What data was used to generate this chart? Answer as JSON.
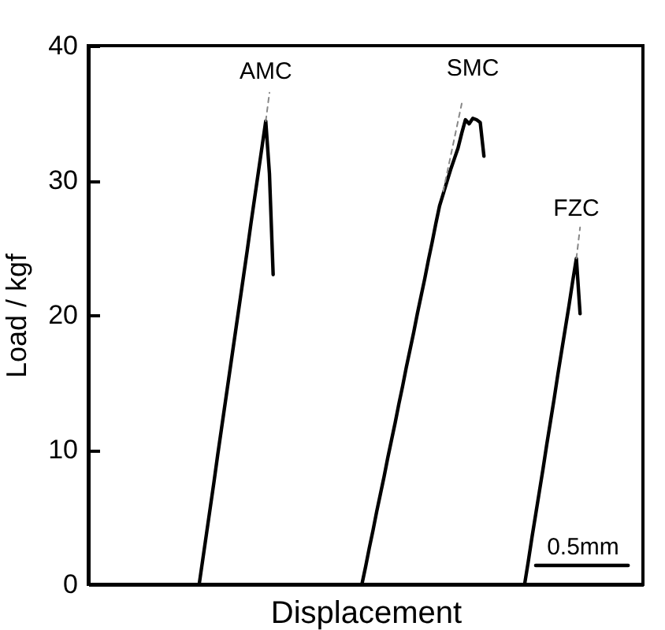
{
  "chart_data": {
    "type": "line",
    "xlabel": "Displacement",
    "ylabel": "Load / kgf",
    "categories": [
      null,
      null,
      null,
      null,
      null,
      null,
      null,
      null,
      null,
      null,
      null,
      null,
      null,
      null,
      null,
      null,
      null,
      null,
      null,
      null,
      null,
      null,
      null,
      null,
      null,
      null,
      null,
      null,
      null,
      null,
      null,
      null,
      null,
      null,
      null,
      null,
      null,
      null,
      null,
      null,
      null,
      null,
      null,
      null,
      null,
      null,
      null,
      null,
      null,
      null,
      null,
      null,
      null,
      null,
      null,
      null,
      null,
      null,
      null,
      null,
      null,
      null,
      null,
      null,
      null,
      null,
      null,
      null,
      null,
      null,
      null,
      null,
      null,
      null,
      null,
      null,
      null,
      null,
      null,
      null,
      null,
      null,
      null,
      null,
      null,
      null,
      null,
      null,
      null,
      null,
      null,
      null,
      null,
      null,
      null,
      null,
      null,
      null,
      null,
      null,
      null,
      null,
      null,
      null,
      null,
      null,
      null,
      null,
      null,
      null,
      null,
      null,
      null,
      null,
      null,
      null,
      null,
      null,
      null,
      null,
      null,
      null,
      null,
      null,
      null,
      null,
      null,
      null,
      null,
      null,
      null,
      null,
      null,
      null,
      null,
      null,
      null,
      null,
      null,
      null,
      null,
      null,
      null,
      null,
      null,
      null,
      null,
      null,
      null,
      null,
      null
    ],
    "ylim": [
      0,
      40
    ],
    "yticks": [
      0,
      10,
      20,
      30,
      40
    ],
    "tick_labels": "y",
    "grid": false,
    "marker": "none",
    "series": [
      {
        "name": "AMC",
        "color": "#000000",
        "values": [
          null,
          null,
          null,
          null,
          null,
          null,
          null,
          null,
          null,
          null,
          null,
          null,
          null,
          null,
          null,
          null,
          null,
          null,
          null,
          null,
          null,
          null,
          null,
          null,
          null,
          null,
          null,
          null,
          null,
          null,
          0,
          1.9,
          3.8,
          5.7,
          7.6,
          9.6,
          11.5,
          13.4,
          15.3,
          17.2,
          19.1,
          21.0,
          22.9,
          24.8,
          26.8,
          28.7,
          30.6,
          32.5,
          34.4,
          30.5,
          23.0,
          null,
          null,
          null,
          null,
          null,
          null,
          null,
          null,
          null,
          null,
          null,
          null,
          null,
          null,
          null,
          null,
          null,
          null,
          null,
          null,
          null,
          null,
          null,
          null,
          null,
          null,
          null,
          null,
          null,
          null,
          null,
          null,
          null,
          null,
          null,
          null,
          null,
          null,
          null,
          null,
          null,
          null,
          null,
          null,
          null,
          null,
          null,
          null,
          null,
          null,
          null,
          null,
          null,
          null,
          null,
          null,
          null,
          null,
          null,
          null,
          null,
          null,
          null,
          null,
          null,
          null,
          null,
          null,
          null,
          null,
          null,
          null,
          null,
          null,
          null,
          null,
          null,
          null,
          null,
          null,
          null,
          null,
          null,
          null,
          null,
          null,
          null,
          null,
          null,
          null,
          null,
          null,
          null,
          null,
          null,
          null,
          null,
          null,
          null,
          null
        ]
      },
      {
        "name": "SMC",
        "color": "#000000",
        "values": [
          null,
          null,
          null,
          null,
          null,
          null,
          null,
          null,
          null,
          null,
          null,
          null,
          null,
          null,
          null,
          null,
          null,
          null,
          null,
          null,
          null,
          null,
          null,
          null,
          null,
          null,
          null,
          null,
          null,
          null,
          null,
          null,
          null,
          null,
          null,
          null,
          null,
          null,
          null,
          null,
          null,
          null,
          null,
          null,
          null,
          null,
          null,
          null,
          null,
          null,
          null,
          null,
          null,
          null,
          null,
          null,
          null,
          null,
          null,
          null,
          null,
          null,
          null,
          null,
          null,
          null,
          null,
          null,
          null,
          null,
          null,
          null,
          null,
          null,
          0,
          1.3,
          2.7,
          4.0,
          5.4,
          6.7,
          8.0,
          9.4,
          10.7,
          12.0,
          13.4,
          14.7,
          16.1,
          17.4,
          18.7,
          20.1,
          21.4,
          22.7,
          24.1,
          25.4,
          26.8,
          28.1,
          29.0,
          29.9,
          30.8,
          31.6,
          32.4,
          33.5,
          34.5,
          34.2,
          34.6,
          34.5,
          34.3,
          31.8,
          null,
          null,
          null,
          null,
          null,
          null,
          null,
          null,
          null,
          null,
          null,
          null,
          null,
          null,
          null,
          null,
          null,
          null,
          null,
          null,
          null,
          null,
          null,
          null,
          null,
          null,
          null,
          null,
          null,
          null,
          null,
          null,
          null,
          null,
          null,
          null,
          null,
          null,
          null,
          null,
          null,
          null,
          null
        ]
      },
      {
        "name": "FZC",
        "color": "#000000",
        "values": [
          null,
          null,
          null,
          null,
          null,
          null,
          null,
          null,
          null,
          null,
          null,
          null,
          null,
          null,
          null,
          null,
          null,
          null,
          null,
          null,
          null,
          null,
          null,
          null,
          null,
          null,
          null,
          null,
          null,
          null,
          null,
          null,
          null,
          null,
          null,
          null,
          null,
          null,
          null,
          null,
          null,
          null,
          null,
          null,
          null,
          null,
          null,
          null,
          null,
          null,
          null,
          null,
          null,
          null,
          null,
          null,
          null,
          null,
          null,
          null,
          null,
          null,
          null,
          null,
          null,
          null,
          null,
          null,
          null,
          null,
          null,
          null,
          null,
          null,
          null,
          null,
          null,
          null,
          null,
          null,
          null,
          null,
          null,
          null,
          null,
          null,
          null,
          null,
          null,
          null,
          null,
          null,
          null,
          null,
          null,
          null,
          null,
          null,
          null,
          null,
          null,
          null,
          null,
          null,
          null,
          null,
          null,
          null,
          null,
          null,
          null,
          null,
          null,
          null,
          null,
          null,
          null,
          null,
          0,
          1.7,
          3.5,
          5.2,
          6.9,
          8.6,
          10.4,
          12.1,
          13.8,
          15.6,
          17.3,
          19.0,
          20.7,
          22.5,
          24.2,
          20.1,
          null,
          null,
          null,
          null,
          null,
          null,
          null,
          null,
          null,
          null,
          null,
          null,
          null,
          null,
          null,
          null,
          null
        ]
      },
      {
        "color": "#888888",
        "line_style": "dashed",
        "values": [
          null,
          null,
          null,
          null,
          null,
          null,
          null,
          null,
          null,
          null,
          null,
          null,
          null,
          null,
          null,
          null,
          null,
          null,
          null,
          null,
          null,
          null,
          null,
          null,
          null,
          null,
          null,
          null,
          null,
          null,
          null,
          null,
          null,
          null,
          null,
          null,
          null,
          null,
          null,
          null,
          null,
          null,
          null,
          null,
          null,
          null,
          null,
          null,
          34.4,
          36.5,
          null,
          null,
          null,
          null,
          null,
          null,
          null,
          null,
          null,
          null,
          null,
          null,
          null,
          null,
          null,
          null,
          null,
          null,
          null,
          null,
          null,
          null,
          null,
          null,
          null,
          null,
          null,
          null,
          null,
          null,
          null,
          null,
          null,
          null,
          null,
          null,
          null,
          null,
          null,
          null,
          null,
          null,
          null,
          null,
          null,
          null,
          null,
          null,
          null,
          null,
          null,
          null,
          null,
          null,
          null,
          null,
          null,
          null,
          null,
          null,
          null,
          null,
          null,
          null,
          null,
          null,
          null,
          null,
          null,
          null,
          null,
          null,
          null,
          null,
          null,
          null,
          null,
          null,
          null,
          null,
          null,
          null,
          null,
          null,
          null,
          null,
          null,
          null,
          null,
          null,
          null,
          null,
          null,
          null,
          null,
          null,
          null,
          null,
          null,
          null,
          null
        ]
      },
      {
        "color": "#888888",
        "line_style": "dashed",
        "values": [
          null,
          null,
          null,
          null,
          null,
          null,
          null,
          null,
          null,
          null,
          null,
          null,
          null,
          null,
          null,
          null,
          null,
          null,
          null,
          null,
          null,
          null,
          null,
          null,
          null,
          null,
          null,
          null,
          null,
          null,
          null,
          null,
          null,
          null,
          null,
          null,
          null,
          null,
          null,
          null,
          null,
          null,
          null,
          null,
          null,
          null,
          null,
          null,
          null,
          null,
          null,
          null,
          null,
          null,
          null,
          null,
          null,
          null,
          null,
          null,
          null,
          null,
          null,
          null,
          null,
          null,
          null,
          null,
          null,
          null,
          null,
          null,
          null,
          null,
          null,
          null,
          null,
          null,
          null,
          null,
          null,
          null,
          null,
          null,
          null,
          null,
          null,
          null,
          null,
          null,
          null,
          null,
          null,
          null,
          null,
          null,
          29.2,
          30.5,
          31.8,
          33.1,
          34.4,
          35.7,
          null,
          null,
          null,
          null,
          null,
          null,
          null,
          null,
          null,
          null,
          null,
          null,
          null,
          null,
          null,
          null,
          null,
          null,
          null,
          null,
          null,
          null,
          null,
          null,
          null,
          null,
          null,
          null,
          null,
          null,
          null,
          null,
          null,
          null,
          null,
          null,
          null,
          null,
          null,
          null,
          null,
          null,
          null,
          null,
          null,
          null,
          null,
          null,
          null
        ]
      },
      {
        "color": "#888888",
        "line_style": "dashed",
        "values": [
          null,
          null,
          null,
          null,
          null,
          null,
          null,
          null,
          null,
          null,
          null,
          null,
          null,
          null,
          null,
          null,
          null,
          null,
          null,
          null,
          null,
          null,
          null,
          null,
          null,
          null,
          null,
          null,
          null,
          null,
          null,
          null,
          null,
          null,
          null,
          null,
          null,
          null,
          null,
          null,
          null,
          null,
          null,
          null,
          null,
          null,
          null,
          null,
          null,
          null,
          null,
          null,
          null,
          null,
          null,
          null,
          null,
          null,
          null,
          null,
          null,
          null,
          null,
          null,
          null,
          null,
          null,
          null,
          null,
          null,
          null,
          null,
          null,
          null,
          null,
          null,
          null,
          null,
          null,
          null,
          null,
          null,
          null,
          null,
          null,
          null,
          null,
          null,
          null,
          null,
          null,
          null,
          null,
          null,
          null,
          null,
          null,
          null,
          null,
          null,
          null,
          null,
          null,
          null,
          null,
          null,
          null,
          null,
          null,
          null,
          null,
          null,
          null,
          null,
          null,
          null,
          null,
          null,
          null,
          null,
          null,
          null,
          null,
          null,
          null,
          null,
          null,
          null,
          null,
          null,
          null,
          null,
          24.2,
          26.5,
          null,
          null,
          null,
          null,
          null,
          null,
          null,
          null,
          null,
          null,
          null,
          null,
          null,
          null,
          null,
          null,
          null
        ]
      },
      {
        "color": "#000000",
        "values": [
          null,
          null,
          null,
          null,
          null,
          null,
          null,
          null,
          null,
          null,
          null,
          null,
          null,
          null,
          null,
          null,
          null,
          null,
          null,
          null,
          null,
          null,
          null,
          null,
          null,
          null,
          null,
          null,
          null,
          null,
          null,
          null,
          null,
          null,
          null,
          null,
          null,
          null,
          null,
          null,
          null,
          null,
          null,
          null,
          null,
          null,
          null,
          null,
          null,
          null,
          null,
          null,
          null,
          null,
          null,
          null,
          null,
          null,
          null,
          null,
          null,
          null,
          null,
          null,
          null,
          null,
          null,
          null,
          null,
          null,
          null,
          null,
          null,
          null,
          null,
          null,
          null,
          null,
          null,
          null,
          null,
          null,
          null,
          null,
          null,
          null,
          null,
          null,
          null,
          null,
          null,
          null,
          null,
          null,
          null,
          null,
          null,
          null,
          null,
          null,
          null,
          null,
          null,
          null,
          null,
          null,
          null,
          null,
          null,
          null,
          null,
          null,
          null,
          null,
          null,
          null,
          null,
          null,
          null,
          null,
          null,
          1.4,
          1.4,
          1.4,
          1.4,
          1.4,
          1.4,
          1.4,
          1.4,
          1.4,
          1.4,
          1.4,
          1.4,
          1.4,
          1.4,
          1.4,
          1.4,
          1.4,
          1.4,
          1.4,
          1.4,
          1.4,
          1.4,
          1.4,
          1.4,
          1.4,
          1.4,
          null,
          null,
          null,
          null
        ]
      }
    ],
    "annotations": [
      "0.5mm"
    ]
  }
}
